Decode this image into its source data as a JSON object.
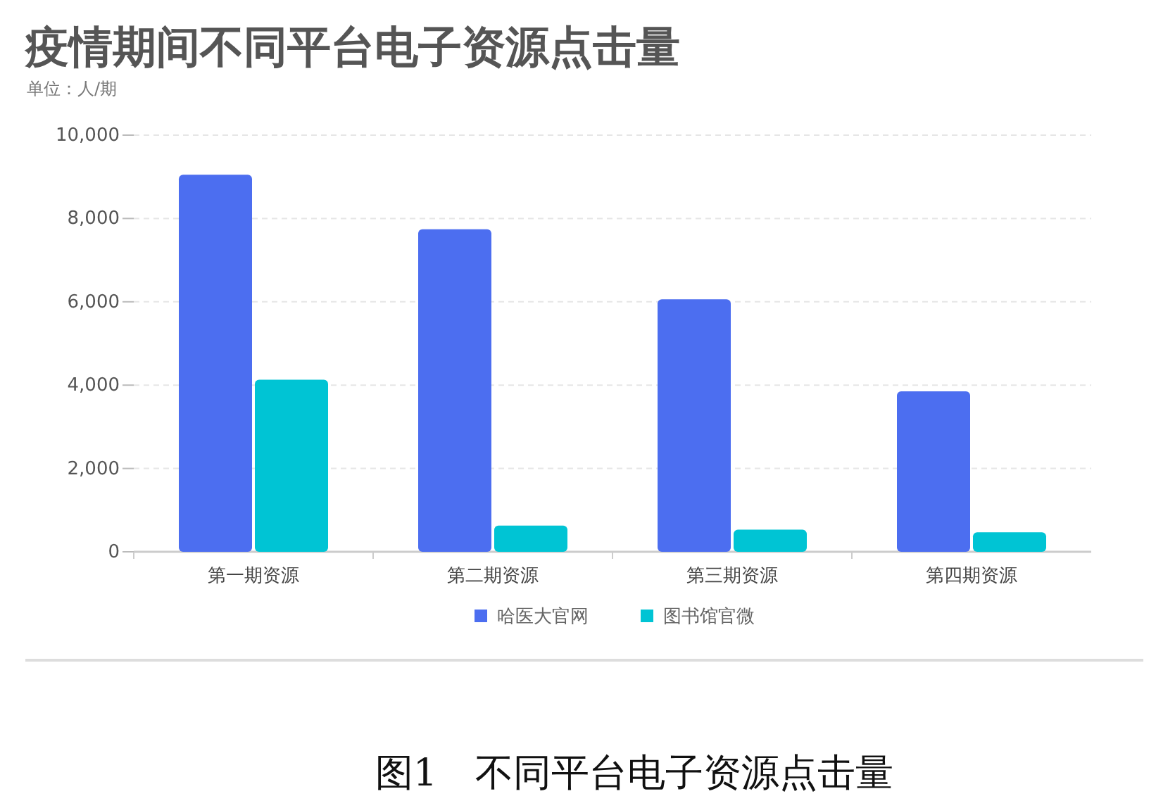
{
  "chart_data": {
    "type": "bar",
    "title": "疫情期间不同平台电子资源点击量",
    "subtitle": "单位：人/期",
    "categories": [
      "第一期资源",
      "第二期资源",
      "第三期资源",
      "第四期资源"
    ],
    "series": [
      {
        "name": "哈医大官网",
        "color": "#4c6ef0",
        "values": [
          9050,
          7740,
          6060,
          3850
        ]
      },
      {
        "name": "图书馆官微",
        "color": "#00c4d4",
        "values": [
          4130,
          630,
          530,
          470
        ]
      }
    ],
    "ylim": [
      0,
      10000
    ],
    "yticks": [
      0,
      {
        "value": 2000,
        "label": "2,000"
      },
      {
        "value": 4000,
        "label": "4,000"
      },
      {
        "value": 6000,
        "label": "6,000"
      },
      {
        "value": 8000,
        "label": "8,000"
      },
      {
        "value": 10000,
        "label": "10,000"
      }
    ],
    "grid": "y",
    "legend": "bottom",
    "annotations": [
      "图1　不同平台电子资源点击量"
    ]
  }
}
